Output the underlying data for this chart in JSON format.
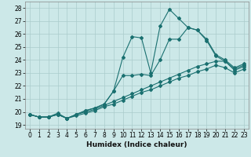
{
  "xlabel": "Humidex (Indice chaleur)",
  "xlim": [
    -0.5,
    23.5
  ],
  "ylim": [
    18.7,
    28.5
  ],
  "yticks": [
    19,
    20,
    21,
    22,
    23,
    24,
    25,
    26,
    27,
    28
  ],
  "xticks": [
    0,
    1,
    2,
    3,
    4,
    5,
    6,
    7,
    8,
    9,
    10,
    11,
    12,
    13,
    14,
    15,
    16,
    17,
    18,
    19,
    20,
    21,
    22,
    23
  ],
  "bg_color": "#cce8e8",
  "grid_color": "#aacccc",
  "line_color": "#1a7070",
  "line1_x": [
    0,
    1,
    2,
    3,
    4,
    5,
    6,
    7,
    8,
    9,
    10,
    11,
    12,
    13,
    14,
    15,
    16,
    17,
    18,
    19,
    20,
    21,
    22,
    23
  ],
  "line1_y": [
    19.8,
    19.6,
    19.6,
    19.8,
    19.5,
    19.8,
    20.1,
    20.3,
    20.6,
    21.6,
    24.2,
    25.8,
    25.7,
    23.0,
    26.6,
    27.9,
    27.2,
    26.5,
    26.3,
    25.6,
    24.4,
    24.0,
    23.4,
    23.7
  ],
  "line2_x": [
    0,
    1,
    2,
    3,
    4,
    5,
    6,
    7,
    8,
    9,
    10,
    11,
    12,
    13,
    14,
    15,
    16,
    17,
    18,
    19,
    20,
    21,
    22,
    23
  ],
  "line2_y": [
    19.8,
    19.6,
    19.6,
    19.8,
    19.5,
    19.8,
    20.1,
    20.3,
    20.6,
    21.6,
    22.8,
    22.8,
    22.9,
    22.8,
    24.0,
    25.6,
    25.6,
    26.5,
    26.3,
    25.5,
    24.3,
    23.9,
    23.3,
    23.6
  ],
  "line3_x": [
    0,
    1,
    2,
    3,
    4,
    5,
    6,
    7,
    8,
    9,
    10,
    11,
    12,
    13,
    14,
    15,
    16,
    17,
    18,
    19,
    20,
    21,
    22,
    23
  ],
  "line3_y": [
    19.8,
    19.6,
    19.6,
    19.9,
    19.5,
    19.8,
    20.0,
    20.2,
    20.5,
    20.8,
    21.1,
    21.4,
    21.7,
    22.0,
    22.3,
    22.6,
    22.9,
    23.2,
    23.5,
    23.7,
    23.9,
    23.9,
    23.2,
    23.5
  ],
  "line4_x": [
    0,
    1,
    2,
    3,
    4,
    5,
    6,
    7,
    8,
    9,
    10,
    11,
    12,
    13,
    14,
    15,
    16,
    17,
    18,
    19,
    20,
    21,
    22,
    23
  ],
  "line4_y": [
    19.8,
    19.6,
    19.6,
    19.8,
    19.5,
    19.7,
    19.9,
    20.1,
    20.4,
    20.6,
    20.9,
    21.2,
    21.5,
    21.7,
    22.0,
    22.3,
    22.6,
    22.8,
    23.1,
    23.3,
    23.6,
    23.4,
    23.0,
    23.3
  ]
}
